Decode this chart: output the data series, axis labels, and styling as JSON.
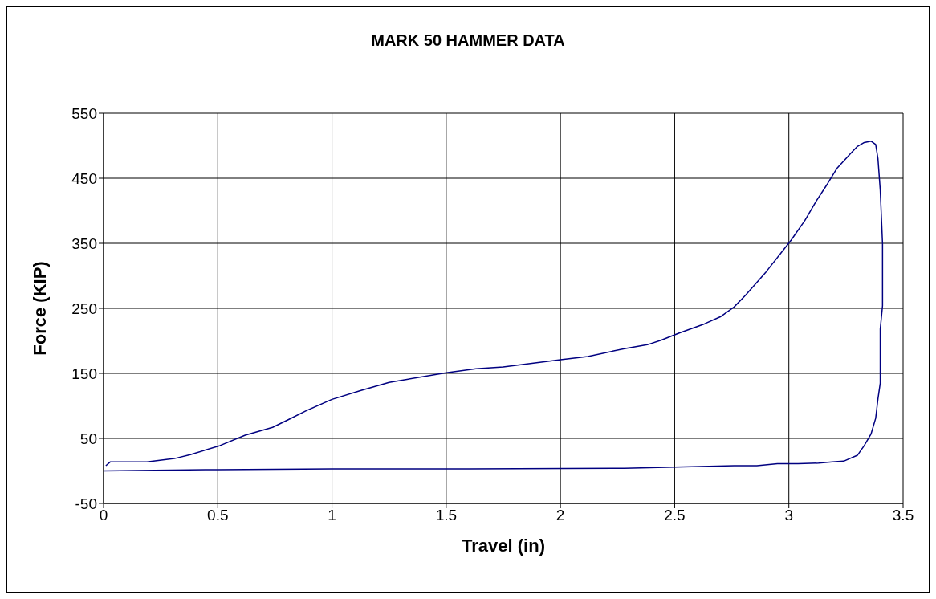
{
  "chart_data": {
    "type": "line",
    "title": "MARK 50 HAMMER DATA",
    "xlabel": "Travel (in)",
    "ylabel": "Force (KIP)",
    "xlim": [
      0,
      3.5
    ],
    "xticks": [
      0,
      0.5,
      1,
      1.5,
      2,
      2.5,
      3,
      3.5
    ],
    "ylim": [
      -50,
      550
    ],
    "yticks": [
      -50,
      50,
      150,
      250,
      350,
      450,
      550
    ],
    "grid": true,
    "marker": "none",
    "line_style": "solid",
    "series": [
      {
        "color": "#000080",
        "x": [
          0.01,
          0.03,
          0.05,
          0.19,
          0.31,
          0.38,
          0.51,
          0.62,
          0.74,
          0.81,
          0.89,
          1.0,
          1.13,
          1.25,
          1.5,
          1.63,
          1.75,
          2.0,
          2.12,
          2.28,
          2.38,
          2.44,
          2.52,
          2.63,
          2.7,
          2.76,
          2.81,
          2.9,
          2.99,
          3.01,
          3.07,
          3.12,
          3.17,
          3.21,
          3.27,
          3.3,
          3.33,
          3.36,
          3.38,
          3.39,
          3.4,
          3.41,
          3.41,
          3.4,
          3.4,
          3.4,
          3.39,
          3.38,
          3.36,
          3.33,
          3.3,
          3.24,
          3.19,
          3.13,
          3.04,
          2.95,
          2.86,
          2.76,
          2.65,
          2.5,
          2.28,
          1.6,
          1.0,
          0.5,
          0
        ],
        "values": [
          8,
          14,
          14,
          14,
          19,
          25,
          39,
          55,
          67,
          79,
          93,
          110,
          124,
          136,
          151,
          157,
          160,
          171,
          176,
          188,
          194,
          201,
          212,
          226,
          237,
          252,
          270,
          306,
          346,
          355,
          385,
          415,
          442,
          465,
          488,
          499,
          505,
          507,
          502,
          480,
          432,
          349,
          254,
          218,
          188,
          135,
          111,
          81,
          57,
          39,
          24,
          15,
          14,
          12,
          11,
          11,
          8,
          8,
          7,
          6,
          4,
          3,
          3,
          2,
          0
        ]
      }
    ]
  }
}
